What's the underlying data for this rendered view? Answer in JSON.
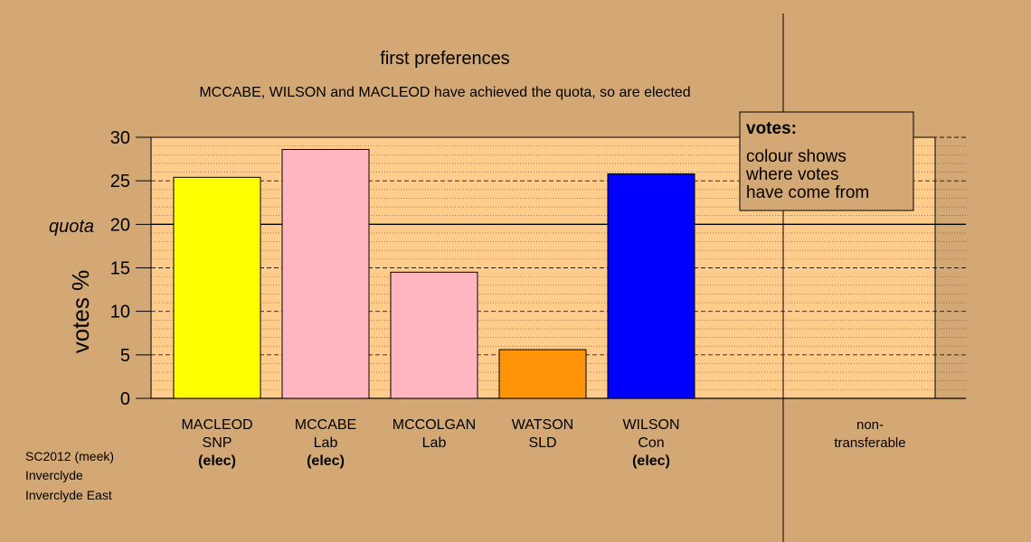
{
  "chart_data": {
    "type": "bar",
    "title": "first preferences",
    "subtitle": "MCCABE, WILSON and MACLEOD have achieved the quota, so are elected",
    "ylabel": "votes %",
    "ylim": [
      0,
      30
    ],
    "yticks": [
      0,
      5,
      10,
      15,
      20,
      25,
      30
    ],
    "quota": {
      "value": 20,
      "label": "quota"
    },
    "candidates": [
      {
        "name": "MACLEOD",
        "party": "SNP",
        "status": "(elec)",
        "value": 25.4,
        "color": "#ffff00"
      },
      {
        "name": "MCCABE",
        "party": "Lab",
        "status": "(elec)",
        "value": 28.6,
        "color": "#ffb6c1"
      },
      {
        "name": "MCCOLGAN",
        "party": "Lab",
        "status": "",
        "value": 14.5,
        "color": "#ffb6c1"
      },
      {
        "name": "WATSON",
        "party": "SLD",
        "status": "",
        "value": 5.6,
        "color": "#ff9408"
      },
      {
        "name": "WILSON",
        "party": "Con",
        "status": "(elec)",
        "value": 25.8,
        "color": "#0000ff"
      }
    ],
    "nontransferable": {
      "label_line1": "non-",
      "label_line2": "transferable",
      "value": 0
    },
    "legend": {
      "title": "votes:",
      "lines": [
        "colour shows",
        "where votes",
        "have come from"
      ],
      "placement": "top-right"
    },
    "grid": true
  },
  "footer": {
    "line1": "SC2012 (meek)",
    "line2": "Inverclyde",
    "line3": "Inverclyde East"
  },
  "colors": {
    "background": "#d4a874",
    "plot_background": "#ffcc8c"
  }
}
